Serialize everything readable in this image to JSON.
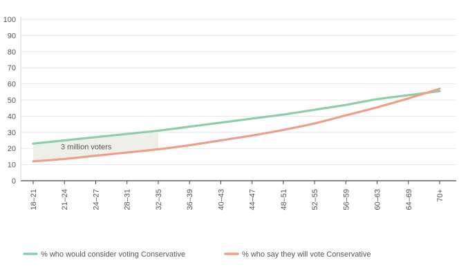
{
  "chart_data": {
    "type": "line",
    "title": "",
    "xlabel": "",
    "ylabel": "",
    "ylim": [
      0,
      100
    ],
    "yticks": [
      0,
      10,
      20,
      30,
      40,
      50,
      60,
      70,
      80,
      90,
      100
    ],
    "categories": [
      "18–21",
      "21–24",
      "24–27",
      "28–31",
      "32–35",
      "36–39",
      "40–43",
      "44–47",
      "48–51",
      "52–55",
      "56–59",
      "60–63",
      "64–69",
      "70+"
    ],
    "series": [
      {
        "name": "% who would consider voting Conservative",
        "color": "#8fcdaa",
        "values": [
          23,
          25,
          27,
          29,
          31,
          33.5,
          36,
          38.5,
          41,
          44,
          47,
          50.5,
          53,
          55.5
        ]
      },
      {
        "name": "% who say they will vote Conservative",
        "color": "#ee9f8a",
        "values": [
          12,
          13.5,
          15.5,
          17.5,
          19.5,
          22,
          25,
          28,
          31.5,
          35.5,
          40.5,
          45.5,
          51,
          57
        ]
      }
    ],
    "annotation": {
      "text": "3 million voters",
      "from_category": "18–21",
      "to_category": "32–35",
      "fill": "#efefea"
    },
    "legend_position": "bottom",
    "grid": true
  }
}
